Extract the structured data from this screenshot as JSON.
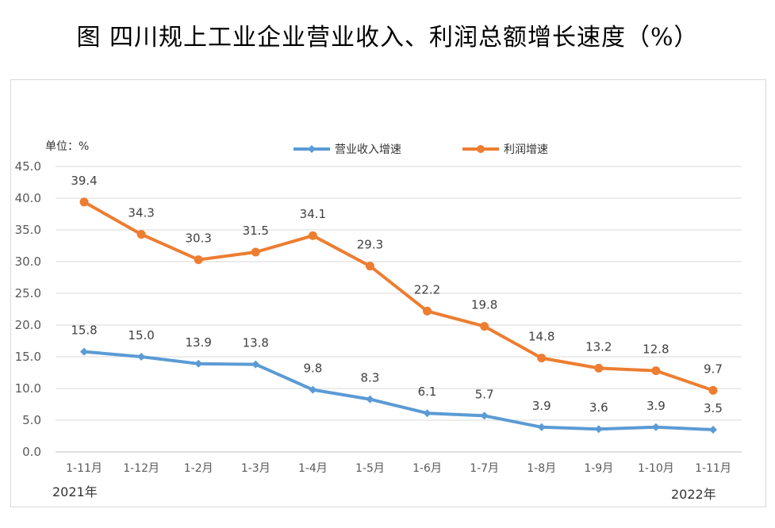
{
  "title": "图  四川规上工业企业营业收入、利润总额增长速度（%）",
  "chart_data": {
    "type": "line",
    "unit_label": "单位：%",
    "categories": [
      "1-11月",
      "1-12月",
      "1-2月",
      "1-3月",
      "1-4月",
      "1-5月",
      "1-6月",
      "1-7月",
      "1-8月",
      "1-9月",
      "1-10月",
      "1-11月"
    ],
    "ylim": [
      0,
      45
    ],
    "yticks": [
      "0.0",
      "5.0",
      "10.0",
      "15.0",
      "20.0",
      "25.0",
      "30.0",
      "35.0",
      "40.0",
      "45.0"
    ],
    "grid": true,
    "legend_position": "top-center",
    "year_labels": {
      "start": "2021年",
      "end": "2022年"
    },
    "series": [
      {
        "name": "营业收入增速",
        "color": "#5b9bd5",
        "values": [
          15.8,
          15.0,
          13.9,
          13.8,
          9.8,
          8.3,
          6.1,
          5.7,
          3.9,
          3.6,
          3.9,
          3.5
        ]
      },
      {
        "name": "利润增速",
        "color": "#ed7d31",
        "values": [
          39.4,
          34.3,
          30.3,
          31.5,
          34.1,
          29.3,
          22.2,
          19.8,
          14.8,
          13.2,
          12.8,
          9.7
        ]
      }
    ]
  }
}
